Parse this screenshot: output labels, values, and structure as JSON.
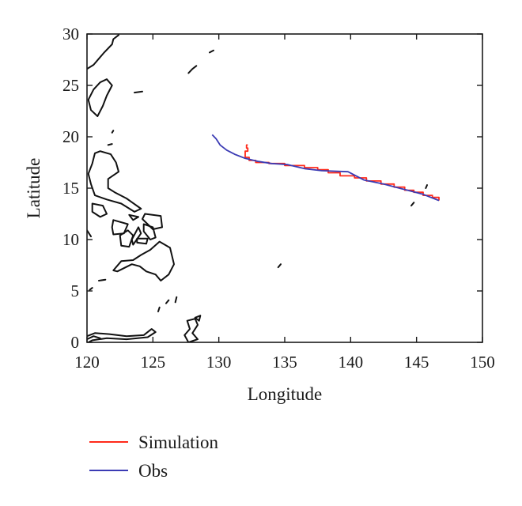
{
  "chart_data": {
    "type": "line",
    "title": "",
    "xlabel": "Longitude",
    "ylabel": "Latitude",
    "xlim": [
      120,
      150
    ],
    "ylim": [
      0,
      30
    ],
    "xticks": [
      120,
      125,
      130,
      135,
      140,
      145,
      150
    ],
    "yticks": [
      0,
      5,
      10,
      15,
      20,
      25,
      30
    ],
    "grid": false,
    "legend_position": "bottom-left, below plot",
    "series": [
      {
        "name": "Simulation",
        "color": "#ff2a1a",
        "step": true,
        "x": [
          132.2,
          132.1,
          132.2,
          132.0,
          132.3,
          132.8,
          133.8,
          135.0,
          136.5,
          137.5,
          138.3,
          139.2,
          140.3,
          141.2,
          142.3,
          143.3,
          144.1,
          144.8,
          145.5,
          146.2,
          146.7
        ],
        "y": [
          19.2,
          18.9,
          18.6,
          18.0,
          17.7,
          17.5,
          17.4,
          17.2,
          17.0,
          16.8,
          16.5,
          16.2,
          16.0,
          15.7,
          15.4,
          15.1,
          14.8,
          14.6,
          14.3,
          14.1,
          13.8
        ]
      },
      {
        "name": "Obs",
        "color": "#3b3bb4",
        "step": false,
        "x": [
          129.5,
          129.8,
          130.1,
          130.6,
          131.2,
          132.0,
          133.0,
          134.0,
          135.2,
          136.5,
          137.8,
          139.8,
          141.0,
          142.5,
          144.0,
          145.5,
          146.7
        ],
        "y": [
          20.2,
          19.8,
          19.2,
          18.7,
          18.3,
          17.9,
          17.6,
          17.4,
          17.3,
          16.9,
          16.7,
          16.6,
          15.8,
          15.4,
          14.9,
          14.4,
          13.8
        ]
      }
    ],
    "coastlines": [
      {
        "name": "taiwan",
        "closed": true,
        "pts": [
          [
            121.0,
            25.3
          ],
          [
            121.5,
            25.6
          ],
          [
            121.9,
            25.0
          ],
          [
            121.5,
            24.0
          ],
          [
            121.2,
            23.0
          ],
          [
            120.8,
            22.0
          ],
          [
            120.3,
            22.6
          ],
          [
            120.1,
            23.6
          ],
          [
            120.5,
            24.6
          ],
          [
            121.0,
            25.3
          ]
        ]
      },
      {
        "name": "china-coast",
        "closed": false,
        "pts": [
          [
            122.4,
            29.9
          ],
          [
            122.0,
            29.5
          ],
          [
            121.9,
            29.0
          ],
          [
            121.3,
            28.2
          ],
          [
            120.9,
            27.6
          ],
          [
            120.5,
            27.0
          ],
          [
            120.0,
            26.6
          ]
        ]
      },
      {
        "name": "ryukyu-1",
        "closed": false,
        "pts": [
          [
            127.7,
            26.2
          ],
          [
            128.0,
            26.6
          ],
          [
            128.3,
            26.9
          ]
        ]
      },
      {
        "name": "ryukyu-2",
        "closed": false,
        "pts": [
          [
            129.3,
            28.2
          ],
          [
            129.6,
            28.4
          ]
        ]
      },
      {
        "name": "ryukyu-3",
        "closed": false,
        "pts": [
          [
            123.6,
            24.3
          ],
          [
            124.2,
            24.4
          ]
        ]
      },
      {
        "name": "luzon",
        "closed": true,
        "pts": [
          [
            120.6,
            18.4
          ],
          [
            121.0,
            18.6
          ],
          [
            121.8,
            18.3
          ],
          [
            122.2,
            17.5
          ],
          [
            122.4,
            16.6
          ],
          [
            121.6,
            15.9
          ],
          [
            121.6,
            15.0
          ],
          [
            122.1,
            14.6
          ],
          [
            123.0,
            14.0
          ],
          [
            124.1,
            13.0
          ],
          [
            123.6,
            12.7
          ],
          [
            122.6,
            13.5
          ],
          [
            121.5,
            13.9
          ],
          [
            120.6,
            14.3
          ],
          [
            120.3,
            15.4
          ],
          [
            120.1,
            16.4
          ],
          [
            120.4,
            17.4
          ],
          [
            120.6,
            18.4
          ]
        ]
      },
      {
        "name": "mindoro",
        "closed": true,
        "pts": [
          [
            120.4,
            13.5
          ],
          [
            121.2,
            13.3
          ],
          [
            121.5,
            12.5
          ],
          [
            121.0,
            12.2
          ],
          [
            120.4,
            12.7
          ],
          [
            120.4,
            13.5
          ]
        ]
      },
      {
        "name": "panay",
        "closed": true,
        "pts": [
          [
            122.0,
            11.9
          ],
          [
            123.1,
            11.5
          ],
          [
            122.8,
            10.6
          ],
          [
            122.0,
            10.5
          ],
          [
            121.9,
            11.2
          ],
          [
            122.0,
            11.9
          ]
        ]
      },
      {
        "name": "negros",
        "closed": true,
        "pts": [
          [
            123.1,
            10.9
          ],
          [
            123.5,
            10.4
          ],
          [
            123.2,
            9.3
          ],
          [
            122.6,
            9.4
          ],
          [
            122.5,
            10.4
          ],
          [
            123.1,
            10.9
          ]
        ]
      },
      {
        "name": "cebu",
        "closed": true,
        "pts": [
          [
            123.9,
            11.2
          ],
          [
            124.1,
            10.6
          ],
          [
            123.5,
            9.5
          ],
          [
            123.4,
            10.0
          ],
          [
            123.9,
            11.2
          ]
        ]
      },
      {
        "name": "samar",
        "closed": true,
        "pts": [
          [
            124.4,
            12.5
          ],
          [
            125.6,
            12.3
          ],
          [
            125.7,
            11.2
          ],
          [
            125.0,
            11.0
          ],
          [
            124.2,
            12.0
          ],
          [
            124.4,
            12.5
          ]
        ]
      },
      {
        "name": "leyte",
        "closed": true,
        "pts": [
          [
            124.3,
            11.5
          ],
          [
            125.0,
            11.2
          ],
          [
            125.2,
            10.2
          ],
          [
            124.8,
            10.0
          ],
          [
            124.3,
            10.8
          ],
          [
            124.3,
            11.5
          ]
        ]
      },
      {
        "name": "bohol",
        "closed": true,
        "pts": [
          [
            123.8,
            10.1
          ],
          [
            124.6,
            10.1
          ],
          [
            124.5,
            9.6
          ],
          [
            123.8,
            9.7
          ],
          [
            123.8,
            10.1
          ]
        ]
      },
      {
        "name": "palawan",
        "closed": false,
        "pts": [
          [
            119.5,
            11.4
          ],
          [
            120.0,
            10.9
          ],
          [
            120.3,
            10.3
          ]
        ]
      },
      {
        "name": "masbate",
        "closed": true,
        "pts": [
          [
            123.2,
            12.4
          ],
          [
            123.9,
            12.2
          ],
          [
            123.5,
            11.9
          ],
          [
            123.2,
            12.4
          ]
        ]
      },
      {
        "name": "mindanao",
        "closed": true,
        "pts": [
          [
            125.5,
            9.8
          ],
          [
            126.3,
            9.2
          ],
          [
            126.6,
            7.6
          ],
          [
            126.2,
            6.6
          ],
          [
            125.6,
            6.0
          ],
          [
            125.2,
            6.6
          ],
          [
            124.5,
            6.9
          ],
          [
            124.0,
            7.4
          ],
          [
            123.4,
            7.6
          ],
          [
            122.3,
            6.9
          ],
          [
            122.0,
            7.0
          ],
          [
            122.6,
            7.9
          ],
          [
            123.5,
            8.0
          ],
          [
            124.1,
            8.5
          ],
          [
            124.8,
            9.0
          ],
          [
            125.5,
            9.8
          ]
        ]
      },
      {
        "name": "sulu-1",
        "closed": false,
        "pts": [
          [
            120.9,
            6.0
          ],
          [
            121.4,
            6.1
          ]
        ]
      },
      {
        "name": "sulu-2",
        "closed": false,
        "pts": [
          [
            120.2,
            5.1
          ],
          [
            120.4,
            5.3
          ]
        ]
      },
      {
        "name": "borneo",
        "closed": false,
        "pts": [
          [
            120.0,
            0.6
          ],
          [
            120.6,
            0.9
          ],
          [
            121.7,
            0.8
          ],
          [
            123.0,
            0.6
          ],
          [
            124.3,
            0.7
          ],
          [
            124.9,
            1.3
          ],
          [
            125.2,
            1.0
          ],
          [
            124.6,
            0.5
          ],
          [
            123.0,
            0.3
          ],
          [
            121.5,
            0.4
          ],
          [
            120.4,
            0.2
          ],
          [
            120.1,
            0.0
          ]
        ]
      },
      {
        "name": "sulawesi-north",
        "closed": false,
        "pts": [
          [
            120.0,
            0.3
          ],
          [
            120.5,
            0.6
          ],
          [
            121.0,
            0.4
          ]
        ]
      },
      {
        "name": "halmahera",
        "closed": true,
        "pts": [
          [
            127.6,
            2.1
          ],
          [
            128.2,
            2.3
          ],
          [
            128.4,
            1.7
          ],
          [
            128.0,
            0.9
          ],
          [
            128.4,
            0.3
          ],
          [
            127.7,
            0.0
          ],
          [
            127.4,
            0.7
          ],
          [
            127.8,
            1.3
          ],
          [
            127.6,
            2.1
          ]
        ]
      },
      {
        "name": "morotai",
        "closed": true,
        "pts": [
          [
            128.2,
            2.4
          ],
          [
            128.6,
            2.6
          ],
          [
            128.5,
            2.1
          ],
          [
            128.2,
            2.4
          ]
        ]
      },
      {
        "name": "talaud",
        "closed": false,
        "pts": [
          [
            126.7,
            3.9
          ],
          [
            126.8,
            4.4
          ]
        ]
      },
      {
        "name": "sangihe",
        "closed": false,
        "pts": [
          [
            125.4,
            3.0
          ],
          [
            125.5,
            3.4
          ]
        ]
      },
      {
        "name": "kep",
        "closed": false,
        "pts": [
          [
            126.0,
            3.8
          ],
          [
            126.2,
            4.1
          ]
        ]
      },
      {
        "name": "palau",
        "closed": false,
        "pts": [
          [
            134.5,
            7.3
          ],
          [
            134.7,
            7.6
          ]
        ]
      },
      {
        "name": "marianas-1",
        "closed": false,
        "pts": [
          [
            144.6,
            13.3
          ],
          [
            144.8,
            13.6
          ]
        ]
      },
      {
        "name": "marianas-2",
        "closed": false,
        "pts": [
          [
            145.7,
            15.0
          ],
          [
            145.8,
            15.3
          ]
        ]
      },
      {
        "name": "batan",
        "closed": false,
        "pts": [
          [
            121.9,
            20.4
          ],
          [
            122.0,
            20.6
          ]
        ]
      },
      {
        "name": "babuyan",
        "closed": false,
        "pts": [
          [
            121.6,
            19.2
          ],
          [
            121.9,
            19.3
          ]
        ]
      }
    ]
  },
  "legend": {
    "items": [
      {
        "label": "Simulation",
        "color": "#ff2a1a"
      },
      {
        "label": "Obs",
        "color": "#3b3bb4"
      }
    ]
  }
}
